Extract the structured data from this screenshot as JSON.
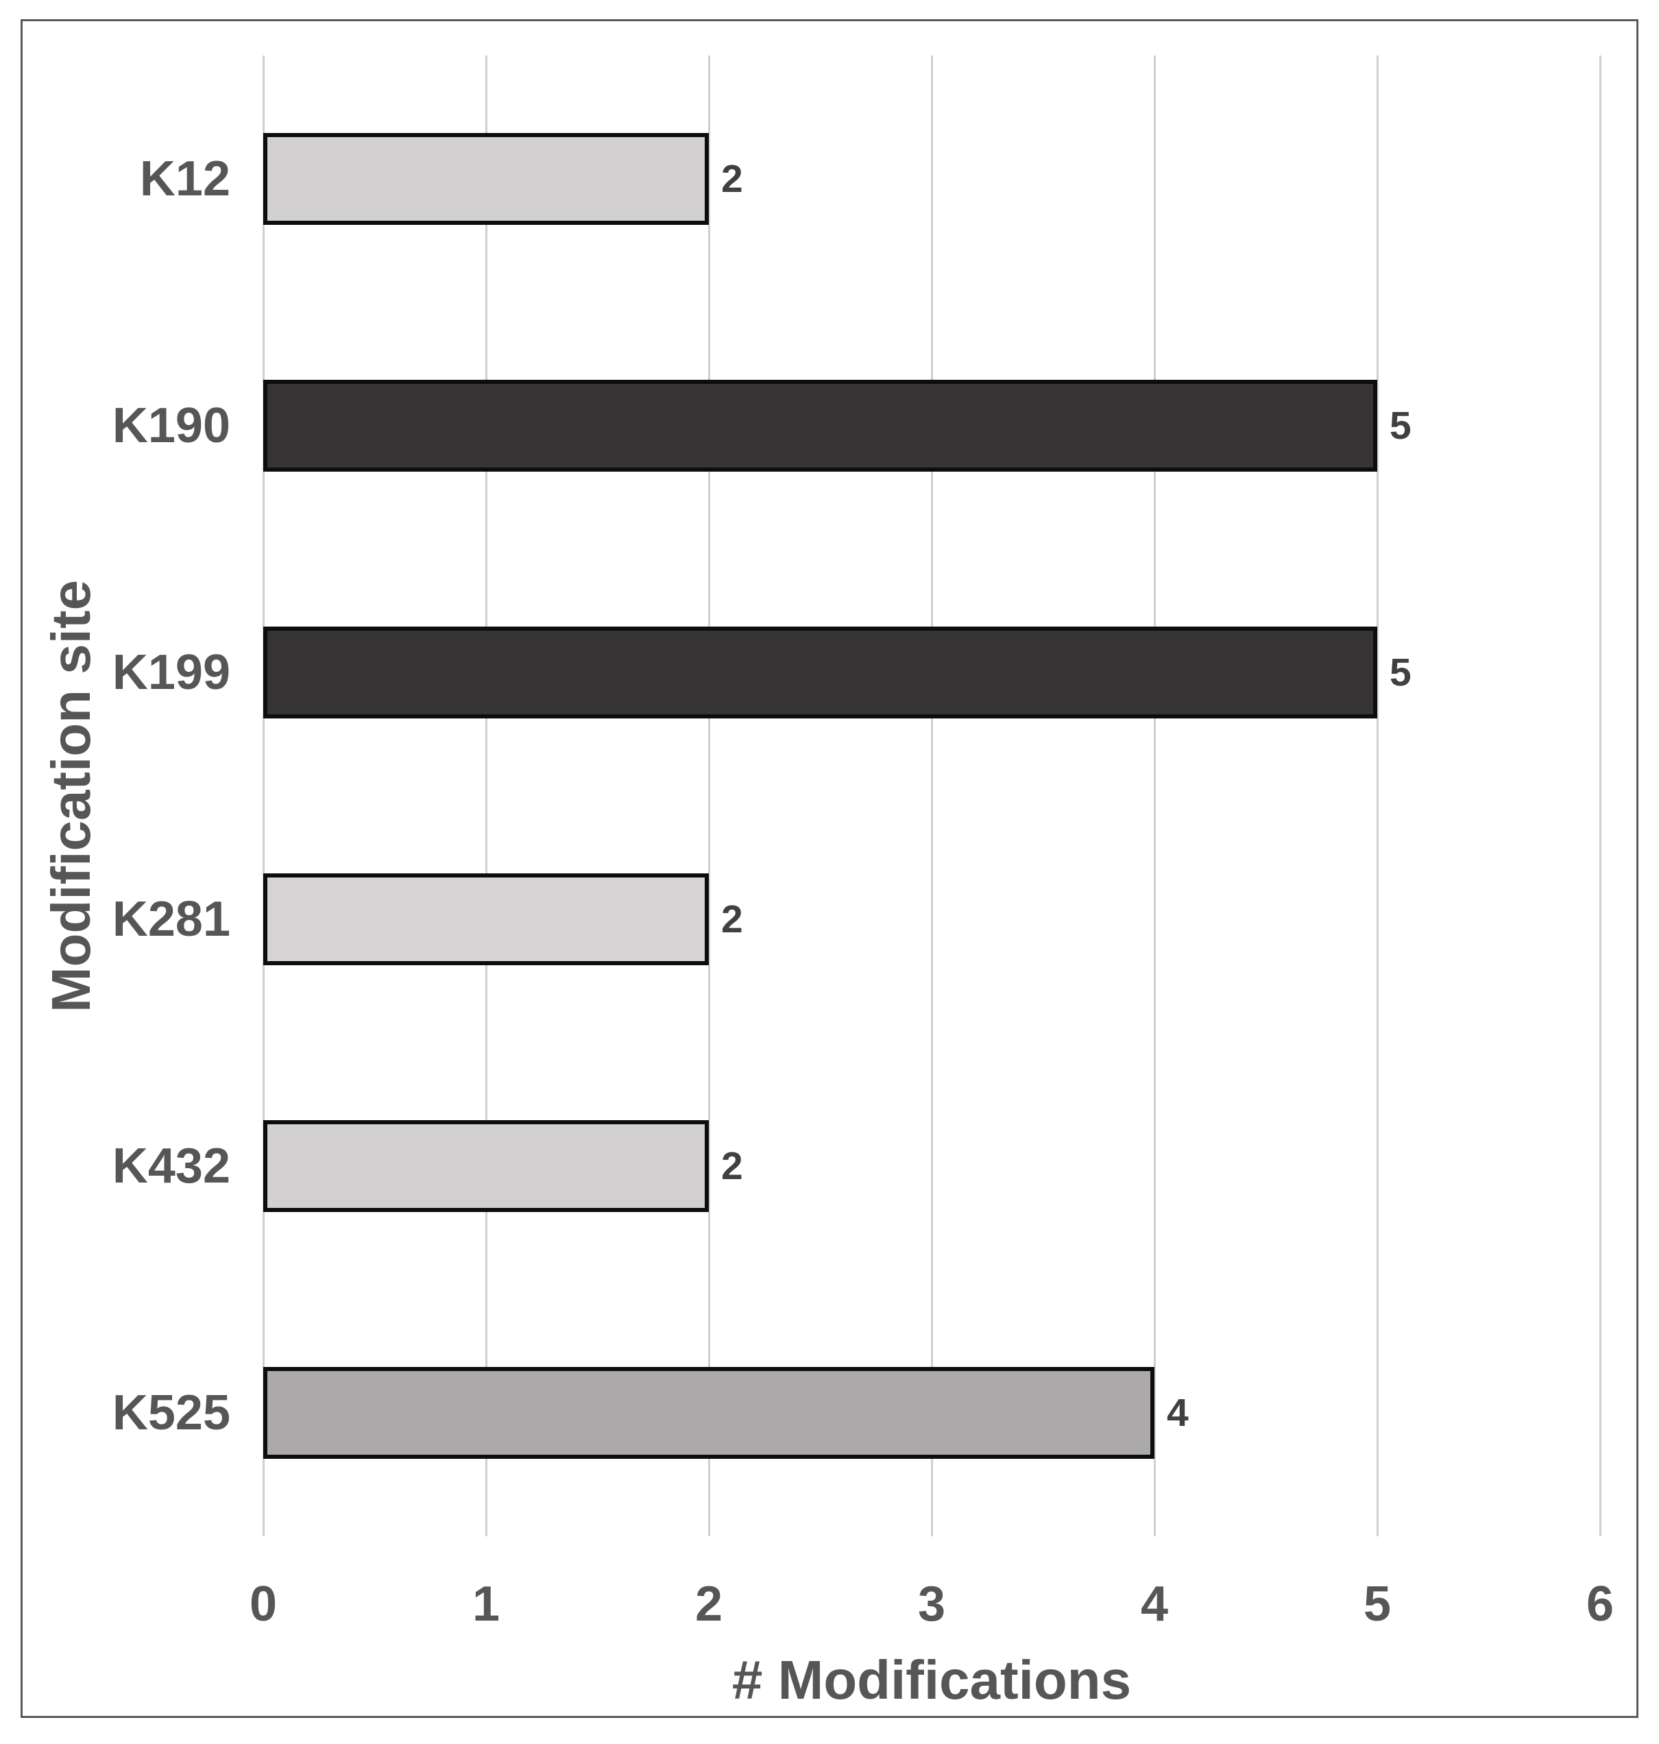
{
  "figure": {
    "background": "#ffffff",
    "frame_color": "#595959"
  },
  "chart_data": {
    "type": "bar",
    "orientation": "horizontal",
    "title": "",
    "xlabel": "# Modifications",
    "ylabel": "Modification site",
    "categories": [
      "K12",
      "K190",
      "K199",
      "K281",
      "K432",
      "K525"
    ],
    "values": [
      2,
      5,
      5,
      2,
      2,
      4
    ],
    "data_labels": [
      "2",
      "5",
      "5",
      "2",
      "2",
      "4"
    ],
    "bar_colors": [
      "#d2d0d0",
      "#363435",
      "#363435",
      "#d5d3d3",
      "#d2d0d0",
      "#aba9a9"
    ],
    "bar_border_color": "#0d0d0d",
    "xlim": [
      0,
      6
    ],
    "xticks": [
      0,
      1,
      2,
      3,
      4,
      5,
      6
    ],
    "grid": "vertical",
    "gridline_color": "#cfcfcf",
    "legend": "none",
    "axis_text_color": "#565656",
    "data_label_color": "#404040"
  }
}
